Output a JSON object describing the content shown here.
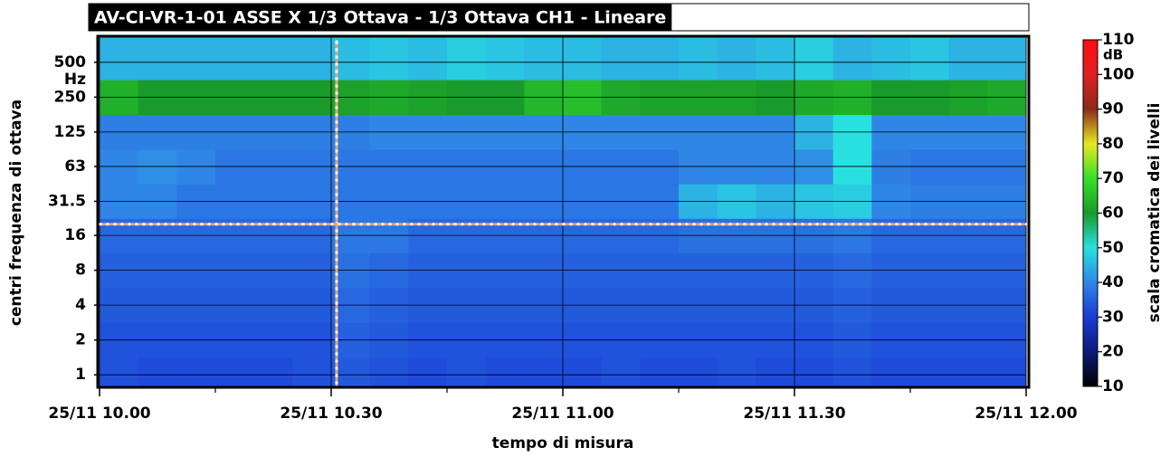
{
  "chart_data": {
    "type": "heatmap",
    "title": "AV-CI-VR-1-01 ASSE X 1/3 Ottava - 1/3 Ottava CH1 - Lineare",
    "xlabel": "tempo di misura",
    "ylabel": "centri frequenza di ottava",
    "yunit": "Hz",
    "x": [
      602.5,
      607.5,
      612.5,
      617.5,
      622.5,
      627.5,
      632.5,
      637.5,
      642.5,
      647.5,
      652.5,
      657.5,
      662.5,
      667.5,
      672.5,
      677.5,
      682.5,
      687.5,
      692.5,
      697.5,
      702.5,
      707.5,
      712.5,
      717.5
    ],
    "xlim": [
      600,
      720
    ],
    "xticks": [
      {
        "value": 600,
        "label": "25/11 10.00"
      },
      {
        "value": 630,
        "label": "25/11 10.30"
      },
      {
        "value": 660,
        "label": "25/11 11.00"
      },
      {
        "value": 690,
        "label": "25/11 11.30"
      },
      {
        "value": 720,
        "label": "25/11 12.00"
      }
    ],
    "xminor": [
      615,
      645,
      675,
      705
    ],
    "y": [
      1,
      2,
      4,
      8,
      16,
      31.5,
      63,
      125,
      250,
      500
    ],
    "ylim": [
      0.78,
      840
    ],
    "ylog": true,
    "yticks": [
      1,
      2,
      4,
      8,
      16,
      31.5,
      63,
      125,
      250,
      500
    ],
    "grid": true,
    "z": [
      [
        33,
        32,
        32,
        32,
        32,
        33,
        34,
        33,
        32,
        33,
        32,
        32,
        32,
        33,
        32,
        32,
        33,
        32,
        32,
        33,
        32,
        32,
        32,
        32
      ],
      [
        33,
        33,
        33,
        33,
        33,
        33,
        35,
        34,
        33,
        33,
        33,
        33,
        33,
        33,
        33,
        33,
        33,
        33,
        33,
        34,
        33,
        33,
        33,
        33
      ],
      [
        34,
        34,
        34,
        34,
        34,
        34,
        36,
        35,
        34,
        34,
        34,
        34,
        34,
        34,
        34,
        34,
        34,
        34,
        34,
        35,
        34,
        34,
        34,
        34
      ],
      [
        35,
        35,
        35,
        35,
        35,
        35,
        37,
        36,
        35,
        35,
        35,
        35,
        35,
        35,
        35,
        35,
        35,
        35,
        35,
        36,
        35,
        35,
        35,
        35
      ],
      [
        36,
        36,
        36,
        36,
        36,
        36,
        38,
        38,
        36,
        36,
        36,
        36,
        36,
        36,
        36,
        37,
        37,
        37,
        37,
        38,
        36,
        36,
        36,
        36
      ],
      [
        40,
        40,
        38,
        38,
        38,
        38,
        38,
        38,
        38,
        38,
        38,
        38,
        38,
        38,
        38,
        45,
        47,
        45,
        47,
        48,
        40,
        39,
        39,
        39
      ],
      [
        40,
        41,
        40,
        38,
        38,
        38,
        38,
        38,
        38,
        38,
        38,
        38,
        38,
        38,
        38,
        40,
        40,
        40,
        41,
        50,
        39,
        38,
        38,
        38
      ],
      [
        39,
        39,
        39,
        39,
        39,
        39,
        39,
        40,
        40,
        40,
        40,
        40,
        40,
        40,
        40,
        40,
        40,
        40,
        45,
        50,
        40,
        40,
        40,
        40
      ],
      [
        63,
        60,
        60,
        60,
        60,
        60,
        61,
        62,
        61,
        60,
        60,
        64,
        65,
        62,
        61,
        61,
        61,
        60,
        62,
        63,
        60,
        60,
        61,
        62
      ],
      [
        45,
        45,
        45,
        45,
        45,
        45,
        46,
        47,
        46,
        48,
        47,
        46,
        46,
        45,
        45,
        46,
        45,
        46,
        48,
        45,
        46,
        47,
        45,
        45
      ]
    ],
    "crosshair": {
      "x": 630.7,
      "y": 20
    },
    "colorbar": {
      "label": "scala cromatica dei livelli",
      "unit": "dB",
      "lim": [
        10,
        110
      ],
      "ticks": [
        10,
        20,
        30,
        40,
        50,
        60,
        70,
        80,
        90,
        100,
        110
      ],
      "colorscale": [
        [
          10,
          "#000000"
        ],
        [
          20,
          "#0b1b78"
        ],
        [
          30,
          "#1a3cd6"
        ],
        [
          40,
          "#2f86e6"
        ],
        [
          50,
          "#28e0e0"
        ],
        [
          60,
          "#1a9a2a"
        ],
        [
          70,
          "#36e02a"
        ],
        [
          80,
          "#e8e820"
        ],
        [
          90,
          "#8a2a1a"
        ],
        [
          100,
          "#e02020"
        ],
        [
          110,
          "#ff1010"
        ]
      ]
    }
  }
}
